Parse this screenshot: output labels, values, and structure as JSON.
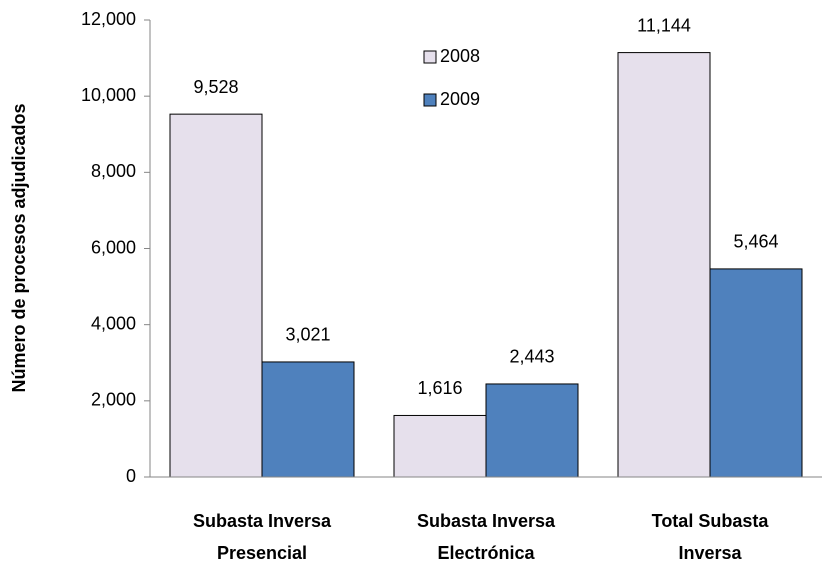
{
  "chart_data": {
    "type": "bar",
    "y_label": "Número de procesos adjudicados",
    "categories": [
      "Subasta Inversa Presencial",
      "Subasta Inversa Electrónica",
      "Total Subasta Inversa"
    ],
    "series": [
      {
        "name": "2008",
        "color": "#e6e0ec",
        "values": [
          9528,
          1616,
          11144
        ],
        "value_labels": [
          "9,528",
          "1,616",
          "11,144"
        ]
      },
      {
        "name": "2009",
        "color": "#4f81bd",
        "values": [
          3021,
          2443,
          5464
        ],
        "value_labels": [
          "3,021",
          "2,443",
          "5,464"
        ]
      }
    ],
    "ylim": [
      0,
      12000
    ],
    "yticks": [
      0,
      {
        "value": 2000,
        "label": "2,000"
      },
      {
        "value": 4000,
        "label": "4,000"
      },
      {
        "value": 6000,
        "label": "6,000"
      },
      {
        "value": 8000,
        "label": "8,000"
      },
      {
        "value": 10000,
        "label": "10,000"
      },
      {
        "value": 12000,
        "label": "12,000"
      }
    ],
    "legend": "top"
  }
}
